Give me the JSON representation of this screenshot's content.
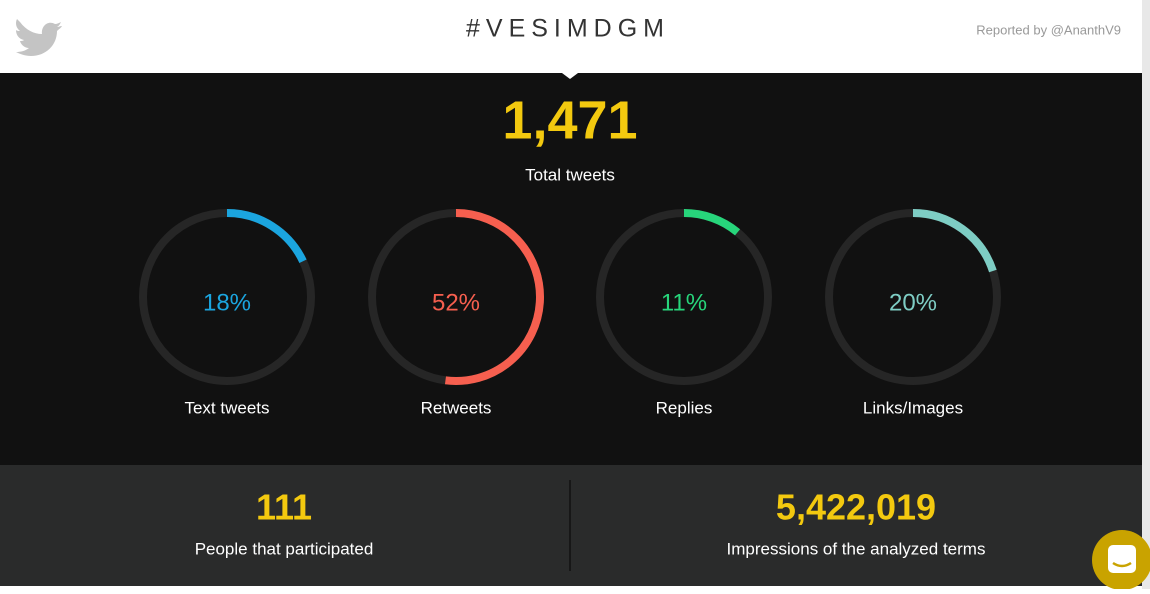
{
  "header": {
    "title": "#VESIMDGM",
    "reporter": "Reported by @AnanthV9"
  },
  "total": {
    "value": "1,471",
    "label": "Total tweets"
  },
  "rings": [
    {
      "name": "Text tweets",
      "value": 18,
      "value_label": "18%",
      "color": "#1ba5df"
    },
    {
      "name": "Retweets",
      "value": 52,
      "value_label": "52%",
      "color": "#f65f4f"
    },
    {
      "name": "Replies",
      "value": 11,
      "value_label": "11%",
      "color": "#27d57b"
    },
    {
      "name": "Links/Images",
      "value": 20,
      "value_label": "20%",
      "color": "#7ecdc4"
    }
  ],
  "stats": [
    {
      "value": "111",
      "label": "People that participated"
    },
    {
      "value": "5,422,019",
      "label": "Impressions of the analyzed terms"
    }
  ]
}
